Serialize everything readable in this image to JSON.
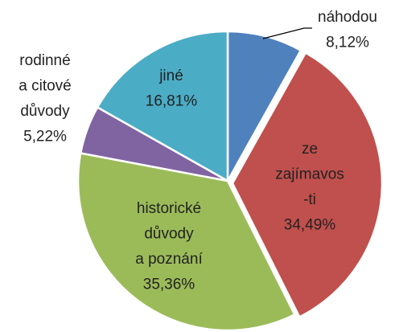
{
  "chart_data": {
    "type": "pie",
    "categories": [
      [
        "náhodou"
      ],
      [
        "ze",
        "zajímavos",
        "-ti"
      ],
      [
        "historické",
        "důvody",
        "a poznání"
      ],
      [
        "rodinné",
        "a citové",
        "důvody"
      ],
      [
        "jiné"
      ]
    ],
    "values": [
      8.12,
      34.49,
      35.36,
      5.22,
      16.81
    ],
    "value_labels": [
      "8,12%",
      "34,49%",
      "35,36%",
      "5,22%",
      "16,81%"
    ],
    "colors": [
      "#4f81bd",
      "#c0504d",
      "#9bbb59",
      "#8064a2",
      "#4bacc6"
    ]
  }
}
